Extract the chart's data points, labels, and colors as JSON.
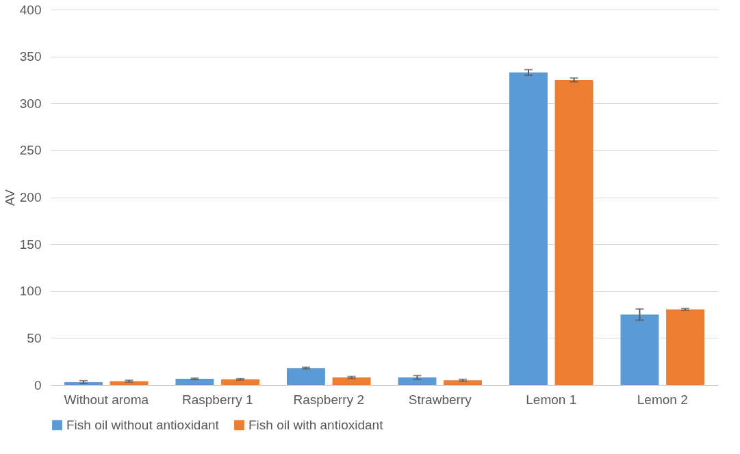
{
  "chart_data": {
    "type": "bar",
    "ylabel": "AV",
    "categories": [
      "Without aroma",
      "Raspberry 1",
      "Raspberry 2",
      "Strawberry",
      "Lemon 1",
      "Lemon 2"
    ],
    "series": [
      {
        "name": "Fish oil without antioxidant",
        "color": "#5b9bd5",
        "values": [
          3,
          6.5,
          18,
          8,
          333,
          75
        ],
        "errors": [
          1.5,
          0.7,
          0.8,
          2,
          3,
          6
        ]
      },
      {
        "name": "Fish oil with antioxidant",
        "color": "#ed7d31",
        "values": [
          4,
          6,
          8,
          5,
          325,
          80.5
        ],
        "errors": [
          1,
          0.7,
          1,
          1,
          2,
          1
        ]
      }
    ],
    "ylim": [
      0,
      400
    ],
    "yticks": [
      0,
      50,
      100,
      150,
      200,
      250,
      300,
      350,
      400
    ],
    "grid": "y",
    "legend": "bottom"
  }
}
